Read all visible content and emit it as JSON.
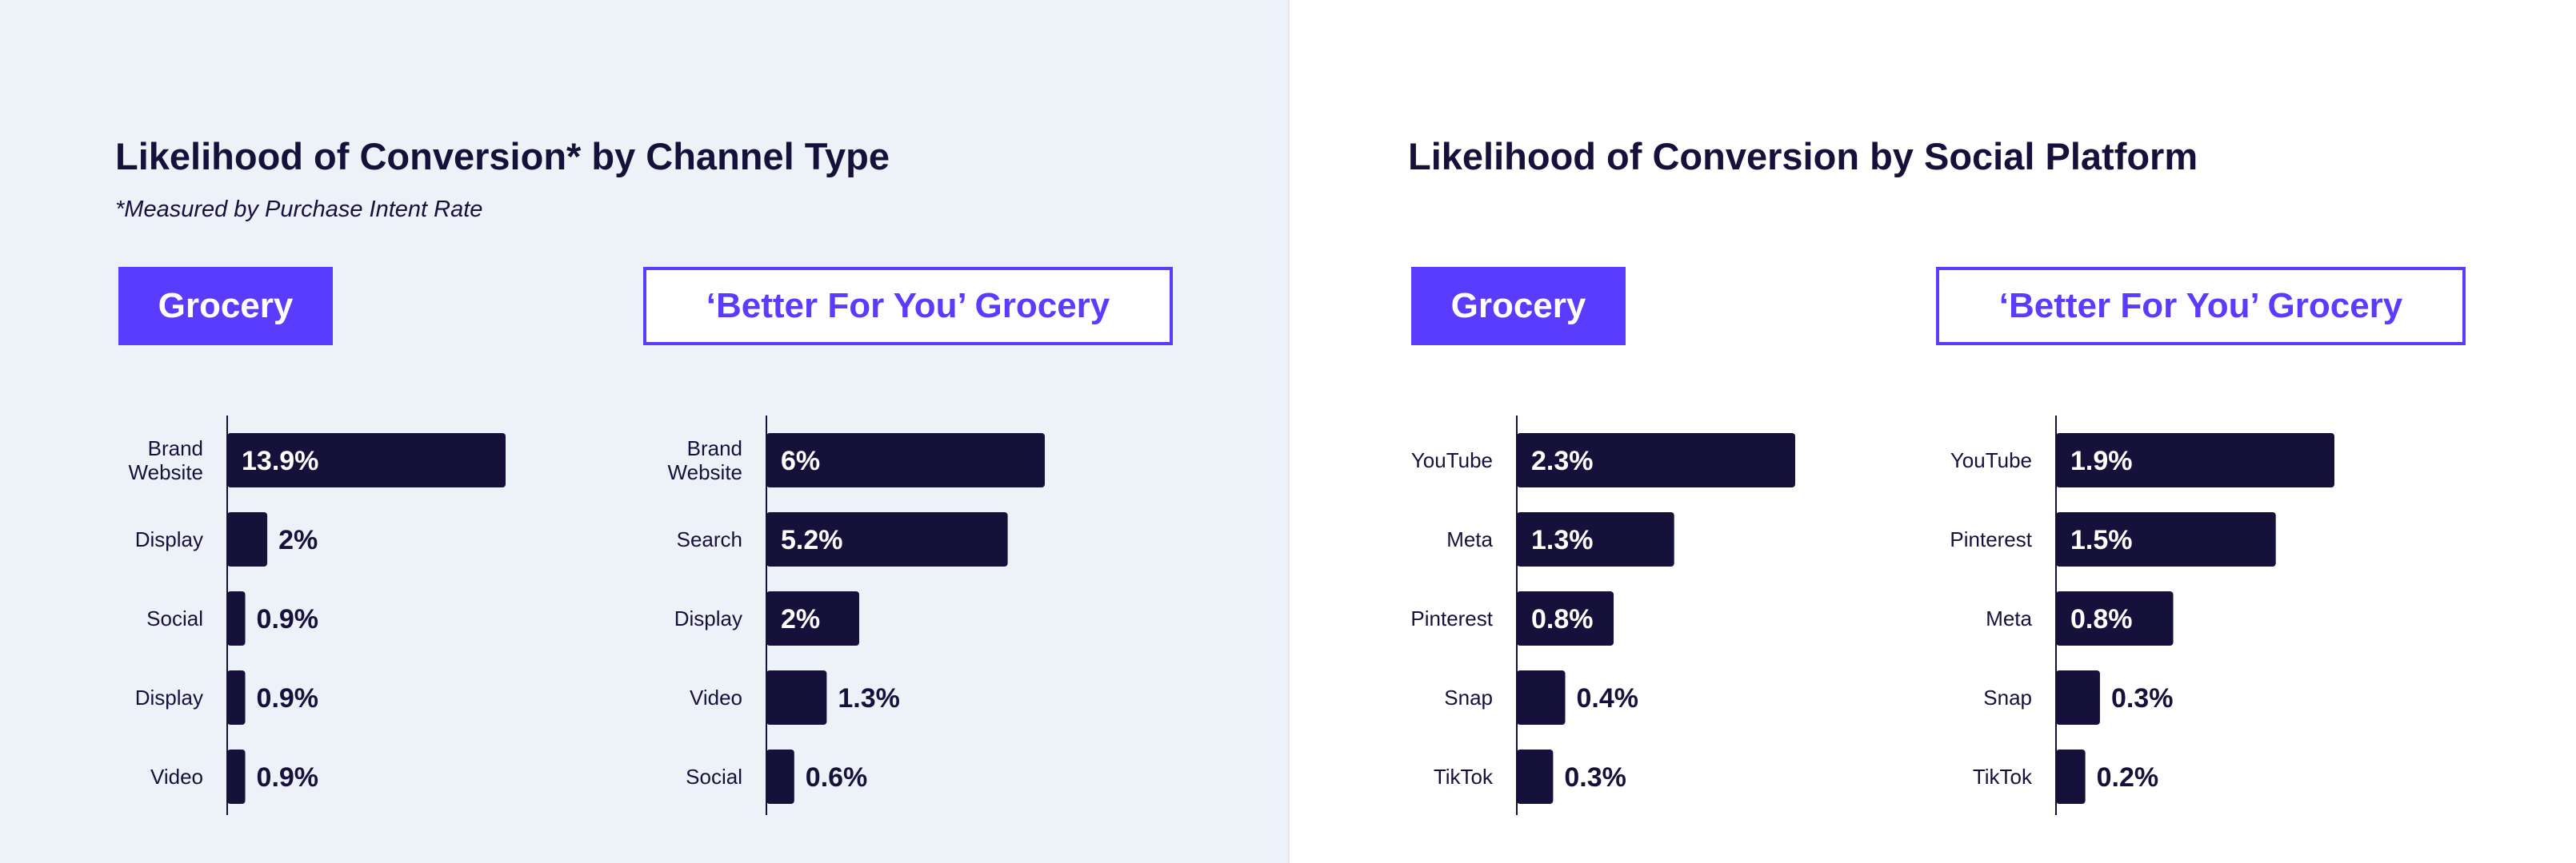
{
  "left_panel": {
    "title": "Likelihood of Conversion* by Channel Type",
    "footnote": "*Measured by Purchase Intent Rate",
    "pill_grocery": "Grocery",
    "pill_bfy": "‘Better For You’ Grocery"
  },
  "right_panel": {
    "title": "Likelihood of Conversion by Social Platform",
    "pill_grocery": "Grocery",
    "pill_bfy": "‘Better For You’ Grocery"
  },
  "colors": {
    "bar": "#15113a",
    "accent": "#5a3cff",
    "text": "#15113a",
    "left_background": "#edf2f8"
  },
  "chart_data": [
    {
      "type": "bar",
      "orientation": "horizontal",
      "group": "Grocery",
      "panel": "Channel Type",
      "categories": [
        [
          "Brand",
          "Website"
        ],
        [
          "Display"
        ],
        [
          "Social"
        ],
        [
          "Display"
        ],
        [
          "Video"
        ]
      ],
      "values": [
        13.9,
        2,
        0.9,
        0.9,
        0.9
      ],
      "labels": [
        "13.9%",
        "2%",
        "0.9%",
        "0.9%",
        "0.9%"
      ],
      "xlim": [
        0,
        13.9
      ]
    },
    {
      "type": "bar",
      "orientation": "horizontal",
      "group": "‘Better For You’ Grocery",
      "panel": "Channel Type",
      "categories": [
        [
          "Brand",
          "Website"
        ],
        [
          "Search"
        ],
        [
          "Display"
        ],
        [
          "Video"
        ],
        [
          "Social"
        ]
      ],
      "values": [
        6,
        5.2,
        2,
        1.3,
        0.6
      ],
      "labels": [
        "6%",
        "5.2%",
        "2%",
        "1.3%",
        "0.6%"
      ],
      "xlim": [
        0,
        6
      ]
    },
    {
      "type": "bar",
      "orientation": "horizontal",
      "group": "Grocery",
      "panel": "Social Platform",
      "categories": [
        [
          "YouTube"
        ],
        [
          "Meta"
        ],
        [
          "Pinterest"
        ],
        [
          "Snap"
        ],
        [
          "TikTok"
        ]
      ],
      "values": [
        2.3,
        1.3,
        0.8,
        0.4,
        0.3
      ],
      "labels": [
        "2.3%",
        "1.3%",
        "0.8%",
        "0.4%",
        "0.3%"
      ],
      "xlim": [
        0,
        2.3
      ]
    },
    {
      "type": "bar",
      "orientation": "horizontal",
      "group": "‘Better For You’ Grocery",
      "panel": "Social Platform",
      "categories": [
        [
          "YouTube"
        ],
        [
          "Pinterest"
        ],
        [
          "Meta"
        ],
        [
          "Snap"
        ],
        [
          "TikTok"
        ]
      ],
      "values": [
        1.9,
        1.5,
        0.8,
        0.3,
        0.2
      ],
      "labels": [
        "1.9%",
        "1.5%",
        "0.8%",
        "0.3%",
        "0.2%"
      ],
      "xlim": [
        0,
        1.9
      ]
    }
  ]
}
